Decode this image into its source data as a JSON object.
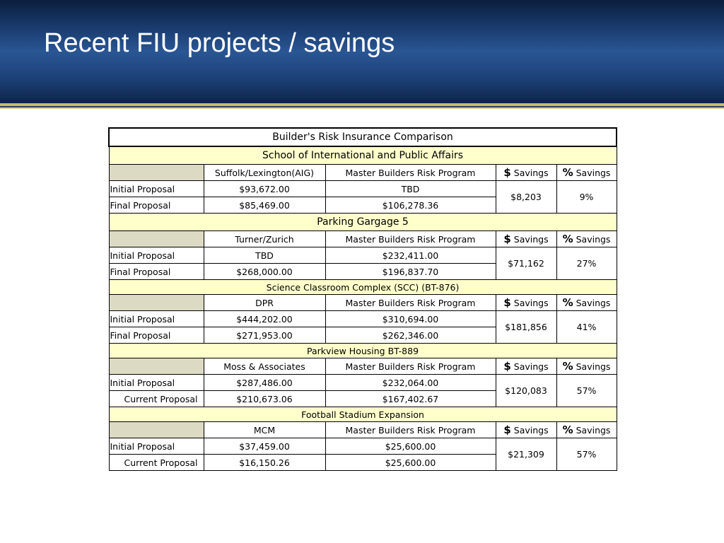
{
  "slide": {
    "title": "Recent FIU projects / savings"
  },
  "table": {
    "title": "Builder's Risk Insurance Comparison",
    "savings_dollar_symbol": "$",
    "savings_percent_symbol": "%",
    "savings_label": "Savings",
    "projects": [
      {
        "name": "School of International and Public Affairs",
        "vendor": "Suffolk/Lexington(AIG)",
        "program": "Master Builders Risk Program",
        "rows": [
          {
            "label": "Initial Proposal",
            "vendor_value": "$93,672.00",
            "program_value": "TBD"
          },
          {
            "label": "Final Proposal",
            "vendor_value": "$85,469.00",
            "program_value": "$106,278.36"
          }
        ],
        "dollar_savings": "$8,203",
        "percent_savings": "9%"
      },
      {
        "name": "Parking Gargage 5",
        "vendor": "Turner/Zurich",
        "program": "Master Builders Risk Program",
        "rows": [
          {
            "label": "Initial Proposal",
            "vendor_value": "TBD",
            "program_value": "$232,411.00"
          },
          {
            "label": "Final Proposal",
            "vendor_value": "$268,000.00",
            "program_value": "$196,837.70"
          }
        ],
        "dollar_savings": "$71,162",
        "percent_savings": "27%"
      },
      {
        "name": "Science Classroom Complex (SCC) (BT-876)",
        "vendor": "DPR",
        "program": "Master Builders Risk Program",
        "rows": [
          {
            "label": "Initial Proposal",
            "vendor_value": "$444,202.00",
            "program_value": "$310,694.00"
          },
          {
            "label": "Final Proposal",
            "vendor_value": "$271,953.00",
            "program_value": "$262,346.00"
          }
        ],
        "dollar_savings": "$181,856",
        "percent_savings": "41%"
      },
      {
        "name": "Parkview Housing BT-889",
        "vendor": "Moss & Associates",
        "program": "Master Builders Risk Program",
        "rows": [
          {
            "label": "Initial Proposal",
            "vendor_value": "$287,486.00",
            "program_value": "$232,064.00"
          },
          {
            "label": "Current Proposal",
            "vendor_value": "$210,673.06",
            "program_value": "$167,402.67"
          }
        ],
        "dollar_savings": "$120,083",
        "percent_savings": "57%"
      },
      {
        "name": "Football Stadium Expansion",
        "vendor": "MCM",
        "program": "Master Builders Risk Program",
        "rows": [
          {
            "label": "Initial Proposal",
            "vendor_value": "$37,459.00",
            "program_value": "$25,600.00"
          },
          {
            "label": "Current Proposal",
            "vendor_value": "$16,150.26",
            "program_value": "$25,600.00"
          }
        ],
        "dollar_savings": "$21,309",
        "percent_savings": "57%"
      }
    ]
  }
}
